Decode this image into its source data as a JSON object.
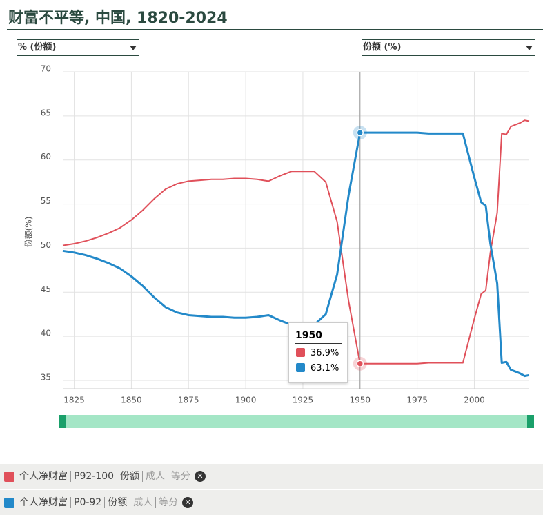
{
  "chart_data": {
    "type": "line",
    "title": "财富不平等, 中国, 1820-2024",
    "controls": {
      "left": "% (份额)",
      "right": "份额 (%)"
    },
    "y_label": "份额(%)",
    "x": [
      1820,
      1825,
      1830,
      1835,
      1840,
      1845,
      1850,
      1855,
      1860,
      1865,
      1870,
      1875,
      1880,
      1885,
      1890,
      1895,
      1900,
      1905,
      1910,
      1915,
      1920,
      1925,
      1930,
      1935,
      1940,
      1945,
      1950,
      1955,
      1960,
      1965,
      1970,
      1975,
      1980,
      1985,
      1990,
      1995,
      2000,
      2003,
      2005,
      2007,
      2010,
      2012,
      2014,
      2016,
      2018,
      2020,
      2022,
      2024
    ],
    "series": [
      {
        "name": "个人净财富",
        "details": [
          "P92-100",
          "份额",
          "成人",
          "等分"
        ],
        "color": "#e0505a",
        "values": [
          50.3,
          50.5,
          50.8,
          51.2,
          51.7,
          52.3,
          53.2,
          54.3,
          55.6,
          56.7,
          57.3,
          57.6,
          57.7,
          57.8,
          57.8,
          57.9,
          57.9,
          57.8,
          57.6,
          58.2,
          58.7,
          58.7,
          58.7,
          57.5,
          53.0,
          44.0,
          36.9,
          36.9,
          36.9,
          36.9,
          36.9,
          36.9,
          37.0,
          37.0,
          37.0,
          37.0,
          42.0,
          44.8,
          45.2,
          49.5,
          54.0,
          63.0,
          62.9,
          63.8,
          64.0,
          64.2,
          64.5,
          64.4
        ]
      },
      {
        "name": "个人净财富",
        "details": [
          "P0-92",
          "份额",
          "成人",
          "等分"
        ],
        "color": "#2389c9",
        "values": [
          49.7,
          49.5,
          49.2,
          48.8,
          48.3,
          47.7,
          46.8,
          45.7,
          44.4,
          43.3,
          42.7,
          42.4,
          42.3,
          42.2,
          42.2,
          42.1,
          42.1,
          42.2,
          42.4,
          41.8,
          41.3,
          41.3,
          41.3,
          42.5,
          47.0,
          56.0,
          63.1,
          63.1,
          63.1,
          63.1,
          63.1,
          63.1,
          63.0,
          63.0,
          63.0,
          63.0,
          58.0,
          55.2,
          54.8,
          50.5,
          46.0,
          37.0,
          37.1,
          36.2,
          36.0,
          35.8,
          35.5,
          35.6
        ]
      }
    ],
    "xlim": [
      1820,
      2024
    ],
    "xticks": [
      1825,
      1850,
      1875,
      1900,
      1925,
      1950,
      1975,
      2000
    ],
    "ylim": [
      35,
      70
    ],
    "yticks": [
      35,
      40,
      45,
      50,
      55,
      60,
      65,
      70
    ],
    "grid": true,
    "tooltip": {
      "x": 1950,
      "labels": [
        "36.9%",
        "63.1%"
      ]
    }
  }
}
